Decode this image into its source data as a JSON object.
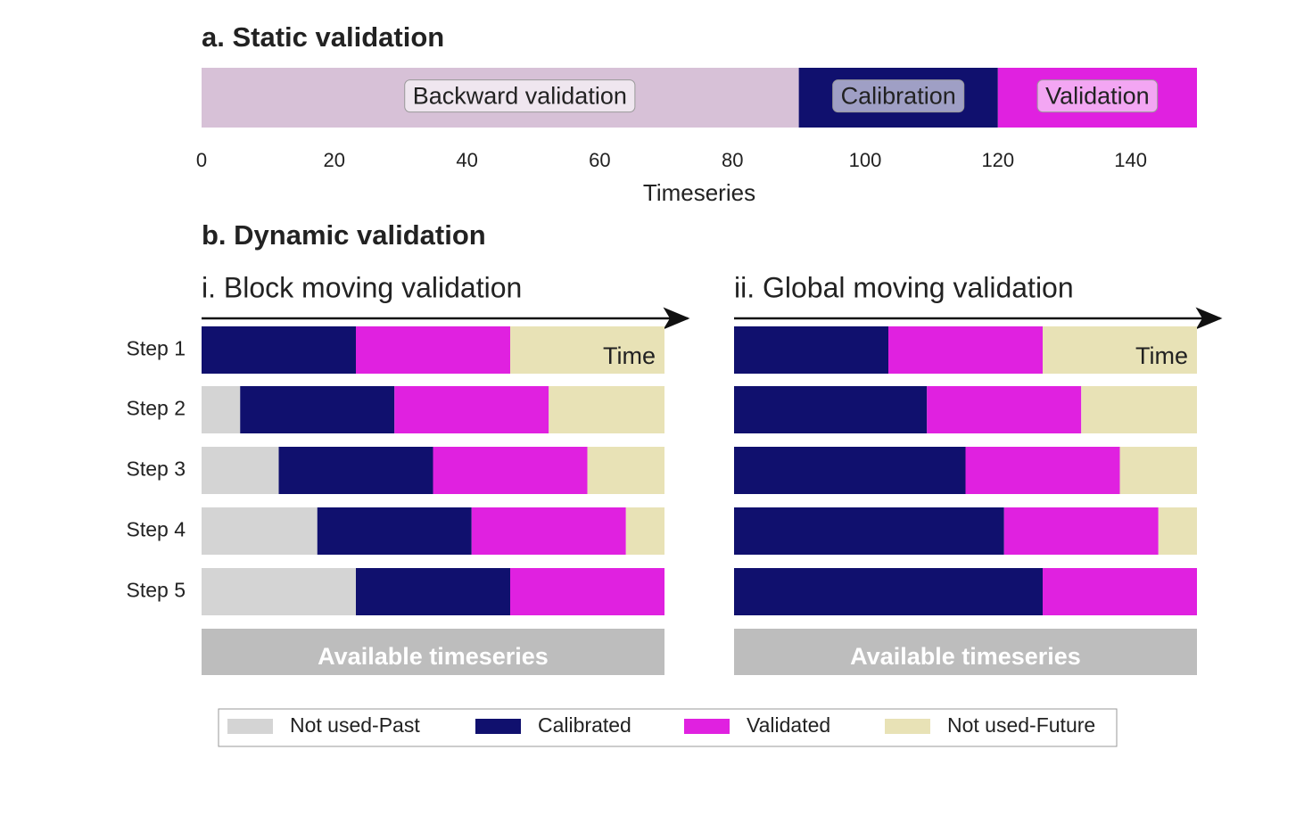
{
  "chart_data": [
    {
      "type": "static-bar",
      "title": "a. Static validation",
      "xlabel": "Timeseries",
      "categories": [
        "Backward validation",
        "Calibration",
        "Validation"
      ],
      "values": [
        90,
        30,
        30
      ],
      "colors": [
        "#d7c1d7",
        "#10106e",
        "#e021e0"
      ],
      "xlim": [
        0,
        150
      ],
      "xticks": [
        0,
        20,
        40,
        60,
        80,
        100,
        120,
        140
      ]
    },
    {
      "type": "stacked-barh",
      "title": "b. Dynamic validation",
      "subtitle": "i. Block moving validation",
      "annotation": "Time",
      "footer": "Available timeseries",
      "xlim": [
        0,
        150
      ],
      "categories": [
        "Step 1",
        "Step 2",
        "Step 3",
        "Step 4",
        "Step 5"
      ],
      "series": [
        {
          "name": "Not used-Past",
          "color": "#d4d4d4",
          "values": [
            0,
            12.5,
            25,
            37.5,
            50
          ]
        },
        {
          "name": "Calibrated",
          "color": "#10106e",
          "values": [
            50,
            50,
            50,
            50,
            50
          ]
        },
        {
          "name": "Validated",
          "color": "#e021e0",
          "values": [
            50,
            50,
            50,
            50,
            50
          ]
        },
        {
          "name": "Not used-Future",
          "color": "#e8e2b6",
          "values": [
            50,
            37.5,
            25,
            12.5,
            0
          ]
        }
      ]
    },
    {
      "type": "stacked-barh",
      "subtitle": "ii. Global moving validation",
      "annotation": "Time",
      "footer": "Available timeseries",
      "xlim": [
        0,
        150
      ],
      "series": [
        {
          "color": "#10106e",
          "values": [
            50,
            62.5,
            75,
            87.5,
            100
          ]
        },
        {
          "color": "#e021e0",
          "values": [
            50,
            50,
            50,
            50,
            50
          ]
        },
        {
          "color": "#e8e2b6",
          "values": [
            50,
            37.5,
            25,
            12.5,
            0
          ]
        }
      ]
    }
  ]
}
